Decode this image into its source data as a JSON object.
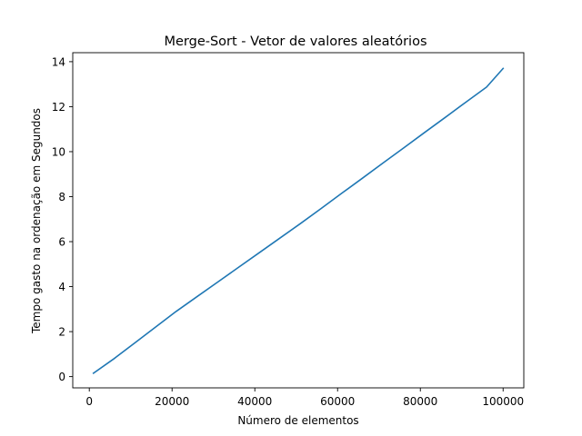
{
  "chart_data": {
    "type": "line",
    "title": "Merge-Sort - Vetor de valores aleatórios",
    "xlabel": "Número de elementos",
    "ylabel": "Tempo gasto na ordenação em Segundos",
    "xlim": [
      -4000,
      105000
    ],
    "ylim": [
      -0.5,
      14.4
    ],
    "xticks": [
      0,
      20000,
      40000,
      60000,
      80000,
      100000
    ],
    "xtick_labels": [
      "0",
      "20000",
      "40000",
      "60000",
      "80000",
      "100000"
    ],
    "yticks": [
      0,
      2,
      4,
      6,
      8,
      10,
      12,
      14
    ],
    "ytick_labels": [
      "0",
      "2",
      "4",
      "6",
      "8",
      "10",
      "12",
      "14"
    ],
    "grid": false,
    "series": [
      {
        "color": "#1f77b4",
        "x": [
          1000,
          6000,
          11000,
          16000,
          21000,
          26000,
          31000,
          36000,
          41000,
          46000,
          51000,
          56000,
          61000,
          66000,
          71000,
          76000,
          81000,
          86000,
          91000,
          96000,
          100000
        ],
        "y": [
          0.15,
          0.8,
          1.5,
          2.2,
          2.9,
          3.55,
          4.2,
          4.85,
          5.5,
          6.15,
          6.8,
          7.47,
          8.15,
          8.82,
          9.5,
          10.17,
          10.85,
          11.52,
          12.2,
          12.87,
          13.7
        ]
      }
    ]
  }
}
